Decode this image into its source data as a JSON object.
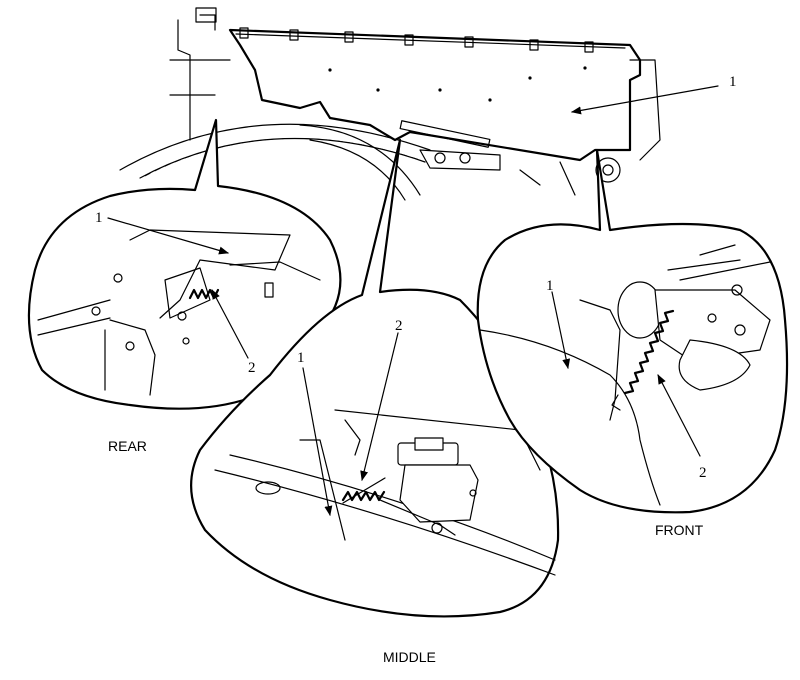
{
  "diagram": {
    "captions": {
      "rear": "REAR",
      "middle": "MIDDLE",
      "front": "FRONT"
    },
    "callouts": {
      "main_part": "1",
      "rear_part": "1",
      "rear_spring": "2",
      "middle_part": "1",
      "middle_spring": "2",
      "front_part": "1",
      "front_spring": "2"
    }
  }
}
